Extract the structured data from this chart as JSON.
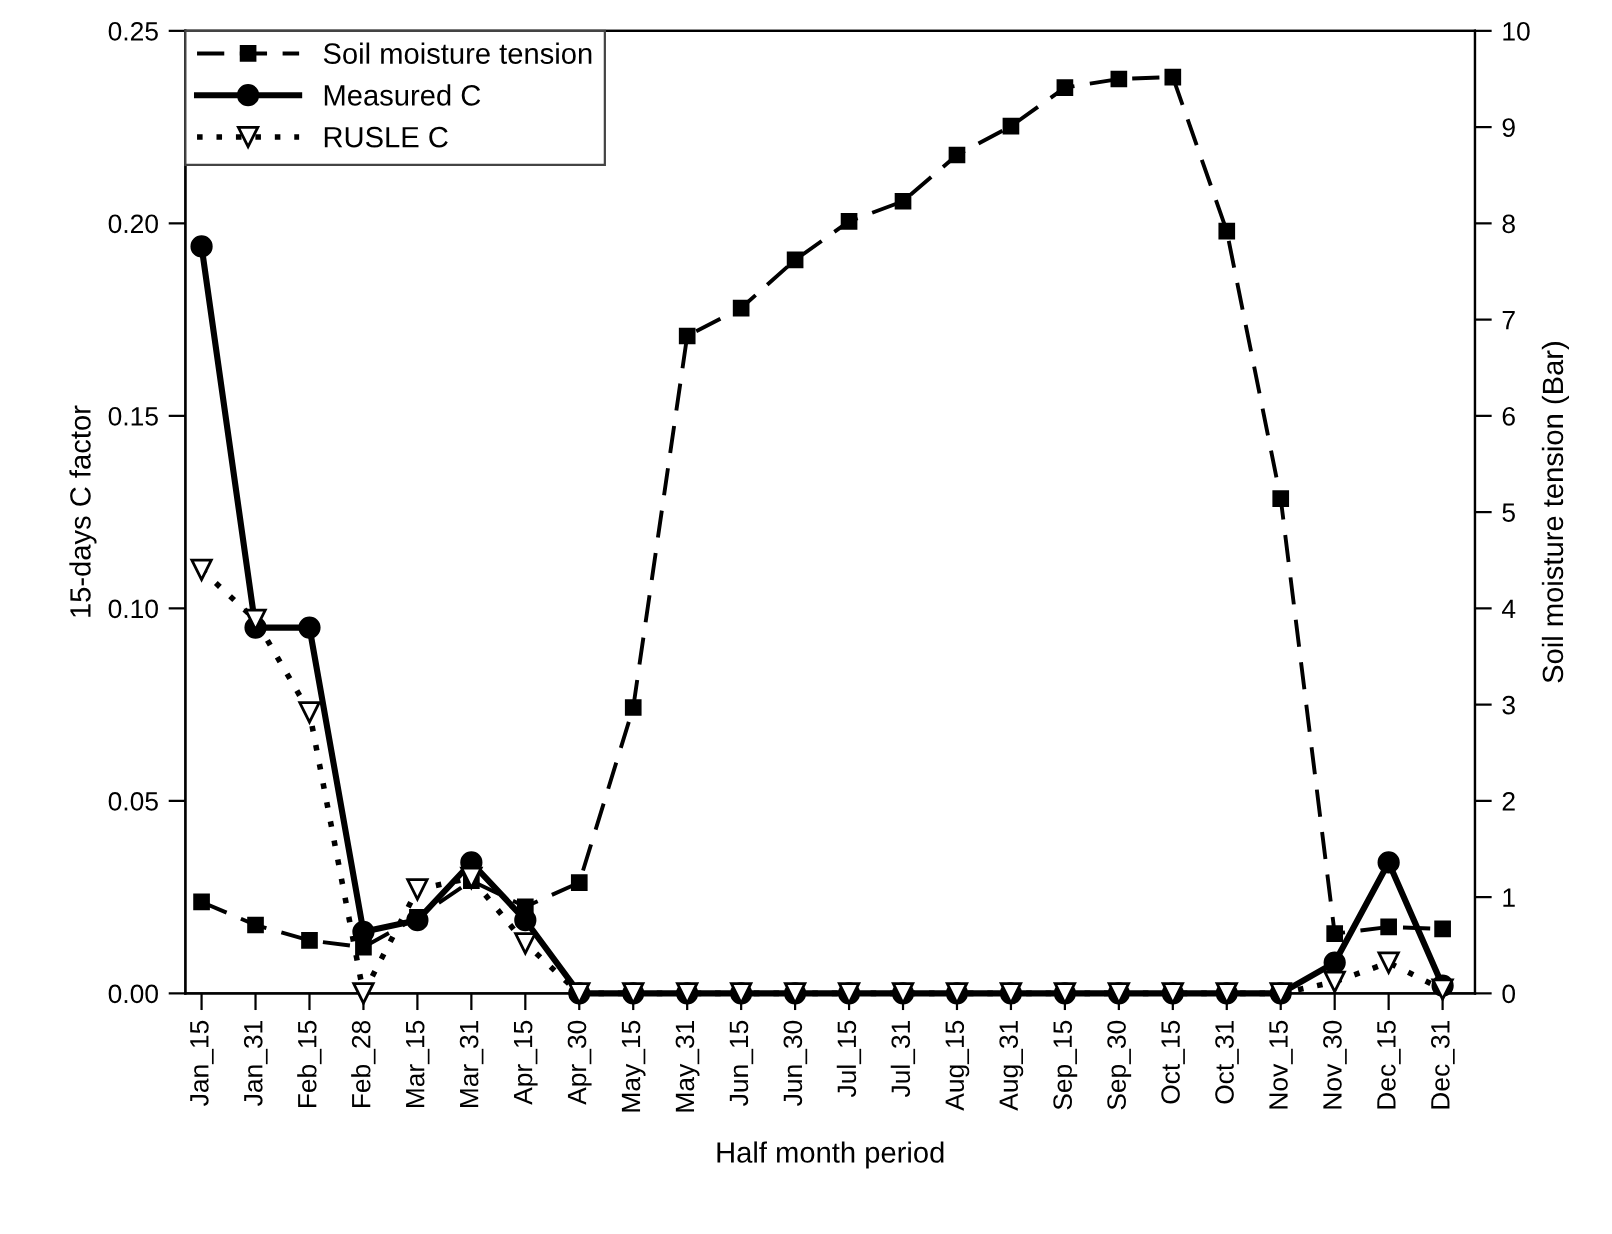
{
  "chart_data": {
    "type": "line",
    "xlabel": "Half month period",
    "ylabel": "15-days C factor",
    "y2label": "Soil moisture tension (Bar)",
    "categories": [
      "Jan_15",
      "Jan_31",
      "Feb_15",
      "Feb_28",
      "Mar_15",
      "Mar_31",
      "Apr_15",
      "Apr_30",
      "May_15",
      "May_31",
      "Jun_15",
      "Jun_30",
      "Jul_15",
      "Jul_31",
      "Aug_15",
      "Aug_31",
      "Sep_15",
      "Sep_30",
      "Oct_15",
      "Oct_31",
      "Nov_15",
      "Nov_30",
      "Dec_15",
      "Dec_31"
    ],
    "ylim": [
      0,
      0.25
    ],
    "yticks": [
      {
        "value": 0,
        "label": "0.00"
      },
      {
        "value": 0.05,
        "label": "0.05"
      },
      {
        "value": 0.1,
        "label": "0.10"
      },
      {
        "value": 0.15,
        "label": "0.15"
      },
      {
        "value": 0.2,
        "label": "0.20"
      },
      {
        "value": 0.25,
        "label": "0.25"
      }
    ],
    "y2lim": [
      0,
      10
    ],
    "y2ticks": [
      0,
      1,
      2,
      3,
      4,
      5,
      6,
      7,
      8,
      9,
      10
    ],
    "grid": false,
    "legend": "top left",
    "series": [
      {
        "name": "Soil moisture tension",
        "color": "#000000",
        "axis": "y2",
        "marker": "square",
        "line_style": "dashed",
        "values": [
          0.95,
          0.71,
          0.55,
          0.48,
          0.79,
          1.17,
          0.9,
          1.15,
          2.97,
          6.83,
          7.12,
          7.62,
          8.02,
          8.23,
          8.71,
          9.01,
          9.41,
          9.5,
          9.52,
          7.92,
          5.14,
          0.62,
          0.69,
          0.67
        ]
      },
      {
        "name": "Measured C",
        "color": "#000000",
        "marker": "circle",
        "line_style": "solid",
        "values": [
          0.194,
          0.095,
          0.095,
          0.016,
          0.019,
          0.034,
          0.019,
          0,
          0,
          0,
          0,
          0,
          0,
          0,
          0,
          0,
          0,
          0,
          0,
          0,
          0,
          0.008,
          0.034,
          0.002
        ]
      },
      {
        "name": "RUSLE C",
        "color": "#000000",
        "marker": "triangle",
        "line_style": "dotted",
        "values": [
          0.11,
          0.097,
          0.073,
          0,
          0.027,
          0.03,
          0.013,
          0,
          0,
          0,
          0,
          0,
          0,
          0,
          0,
          0,
          0,
          0,
          0,
          0,
          0,
          0.003,
          0.008,
          0.001
        ]
      }
    ]
  }
}
